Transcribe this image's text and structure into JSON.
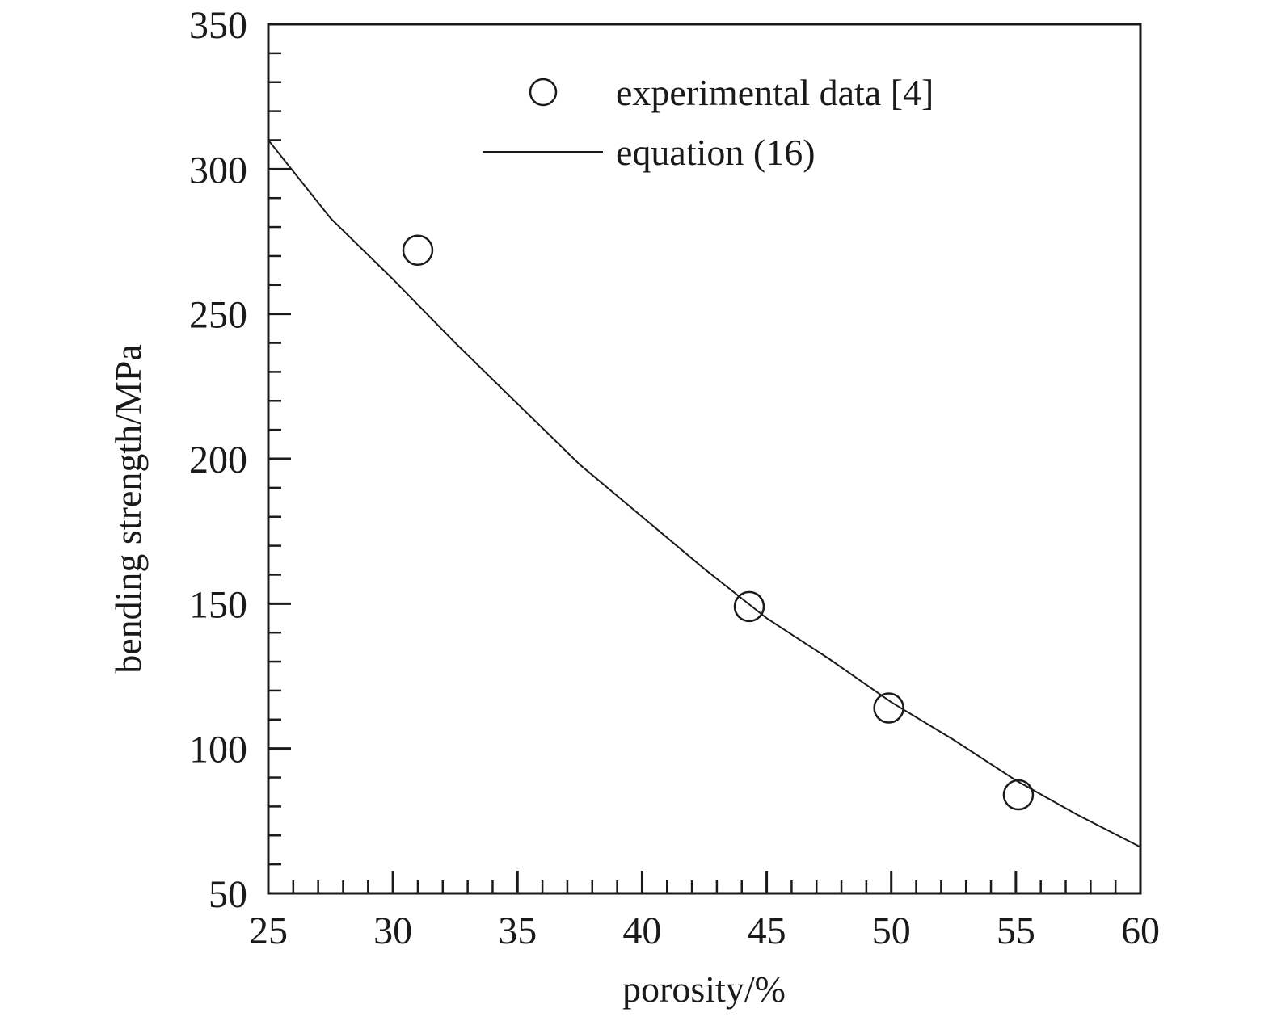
{
  "chart_data": {
    "type": "scatter",
    "title": "",
    "xlabel": "porosity/%",
    "ylabel": "bending strength/MPa",
    "xlim": [
      25,
      60
    ],
    "ylim": [
      50,
      350
    ],
    "x_ticks": [
      25,
      30,
      35,
      40,
      45,
      50,
      55,
      60
    ],
    "y_ticks": [
      50,
      100,
      150,
      200,
      250,
      300,
      350
    ],
    "x_minor_step": 1,
    "y_minor_step": 10,
    "grid": false,
    "legend": {
      "placement": "top-right",
      "entries": [
        {
          "label": "experimental data [4]",
          "marker": "circle"
        },
        {
          "label": "equation (16)",
          "marker": "line"
        }
      ]
    },
    "series": [
      {
        "name": "experimental data [4]",
        "kind": "scatter",
        "marker": "open-circle",
        "color": "#1a1a1a",
        "points": [
          {
            "x": 31.0,
            "y": 272
          },
          {
            "x": 44.3,
            "y": 149
          },
          {
            "x": 49.9,
            "y": 114
          },
          {
            "x": 55.1,
            "y": 84
          }
        ]
      },
      {
        "name": "equation (16)",
        "kind": "line",
        "color": "#1a1a1a",
        "points": [
          {
            "x": 25,
            "y": 310
          },
          {
            "x": 27.5,
            "y": 283
          },
          {
            "x": 30,
            "y": 262
          },
          {
            "x": 32.5,
            "y": 240
          },
          {
            "x": 35,
            "y": 219
          },
          {
            "x": 37.5,
            "y": 198
          },
          {
            "x": 40,
            "y": 180
          },
          {
            "x": 42.5,
            "y": 162
          },
          {
            "x": 45,
            "y": 145
          },
          {
            "x": 47.5,
            "y": 131
          },
          {
            "x": 50,
            "y": 116
          },
          {
            "x": 52.5,
            "y": 103
          },
          {
            "x": 55,
            "y": 89
          },
          {
            "x": 57.5,
            "y": 77
          },
          {
            "x": 60,
            "y": 66
          }
        ]
      }
    ]
  }
}
